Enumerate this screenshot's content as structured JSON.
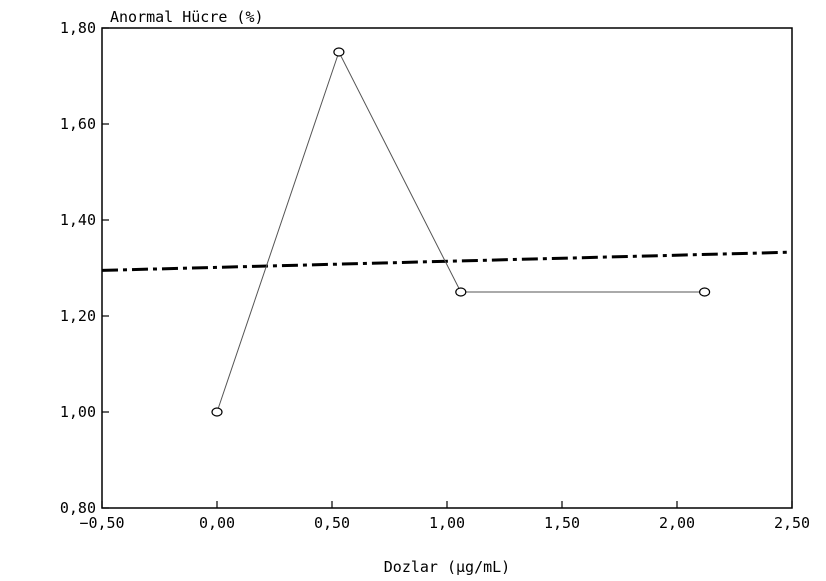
{
  "chart_data": {
    "type": "line",
    "title": "",
    "ylabel": "Anormal Hücre (%)",
    "xlabel": "Dozlar (µg/mL)",
    "xlim": [
      -0.5,
      2.5
    ],
    "ylim": [
      0.8,
      1.8
    ],
    "x_ticks": [
      -0.5,
      0.0,
      0.5,
      1.0,
      1.5,
      2.0,
      2.5
    ],
    "x_tick_labels": [
      "−0,50",
      "0,00",
      "0,50",
      "1,00",
      "1,50",
      "2,00",
      "2,50"
    ],
    "y_ticks": [
      0.8,
      1.0,
      1.2,
      1.4,
      1.6,
      1.8
    ],
    "y_tick_labels": [
      "0,80",
      "1,00",
      "1,20",
      "1,40",
      "1,60",
      "1,80"
    ],
    "grid": false,
    "legend": "none",
    "series": [
      {
        "style": "solid-with-circle-markers",
        "x": [
          0.0,
          0.53,
          1.06,
          2.12
        ],
        "y": [
          1.0,
          1.75,
          1.25,
          1.25
        ]
      },
      {
        "style": "dash-dot-trend",
        "x": [
          -0.5,
          2.5
        ],
        "y": [
          1.295,
          1.333
        ]
      }
    ],
    "colors": {
      "axis": "#000000",
      "data_line": "#555555",
      "trend_line": "#000000"
    }
  }
}
